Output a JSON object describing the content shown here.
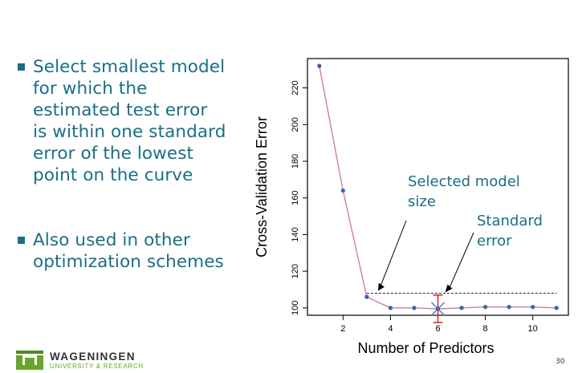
{
  "bullets": [
    "Select smallest model\nfor which the\nestimated test error\nis within one standard\nerror of the lowest\npoint on the curve",
    "Also used in other\noptimization schemes"
  ],
  "colors": {
    "text_blue": "#1a6e86",
    "curve": "#d57aa8",
    "points": "#3f63a8",
    "annotation": "#1a6e86",
    "error_bar": "#e03030",
    "selected_marker": "#5b8fd0",
    "logo_green": "#6aa42a"
  },
  "chart_data": {
    "type": "line",
    "title": "",
    "xlabel": "Number of Predictors",
    "ylabel": "Cross-Validation Error",
    "x": [
      1,
      2,
      3,
      4,
      5,
      6,
      7,
      8,
      9,
      10,
      11
    ],
    "values": [
      232,
      164,
      106,
      100,
      100,
      99.5,
      100,
      100.5,
      100.5,
      100.5,
      100
    ],
    "xticks": [
      2,
      4,
      6,
      8,
      10
    ],
    "yticks": [
      100,
      120,
      140,
      160,
      180,
      200,
      220
    ],
    "xlim": [
      0.5,
      11.5
    ],
    "ylim": [
      96,
      236
    ],
    "one_se_threshold": 108,
    "threshold_x_range": [
      3,
      11
    ],
    "error_bar": {
      "x": 6,
      "center": 99.5,
      "low": 92,
      "high": 107
    },
    "selected_min_x": 6,
    "annotations": [
      {
        "text": "Selected model\nsize",
        "points_to_x": 3
      },
      {
        "text": "Standard\nerror",
        "points_to_x": 6
      }
    ]
  },
  "footer": {
    "logo_name": "WAGENINGEN",
    "logo_sub": "UNIVERSITY & RESEARCH",
    "page_number": "30"
  }
}
